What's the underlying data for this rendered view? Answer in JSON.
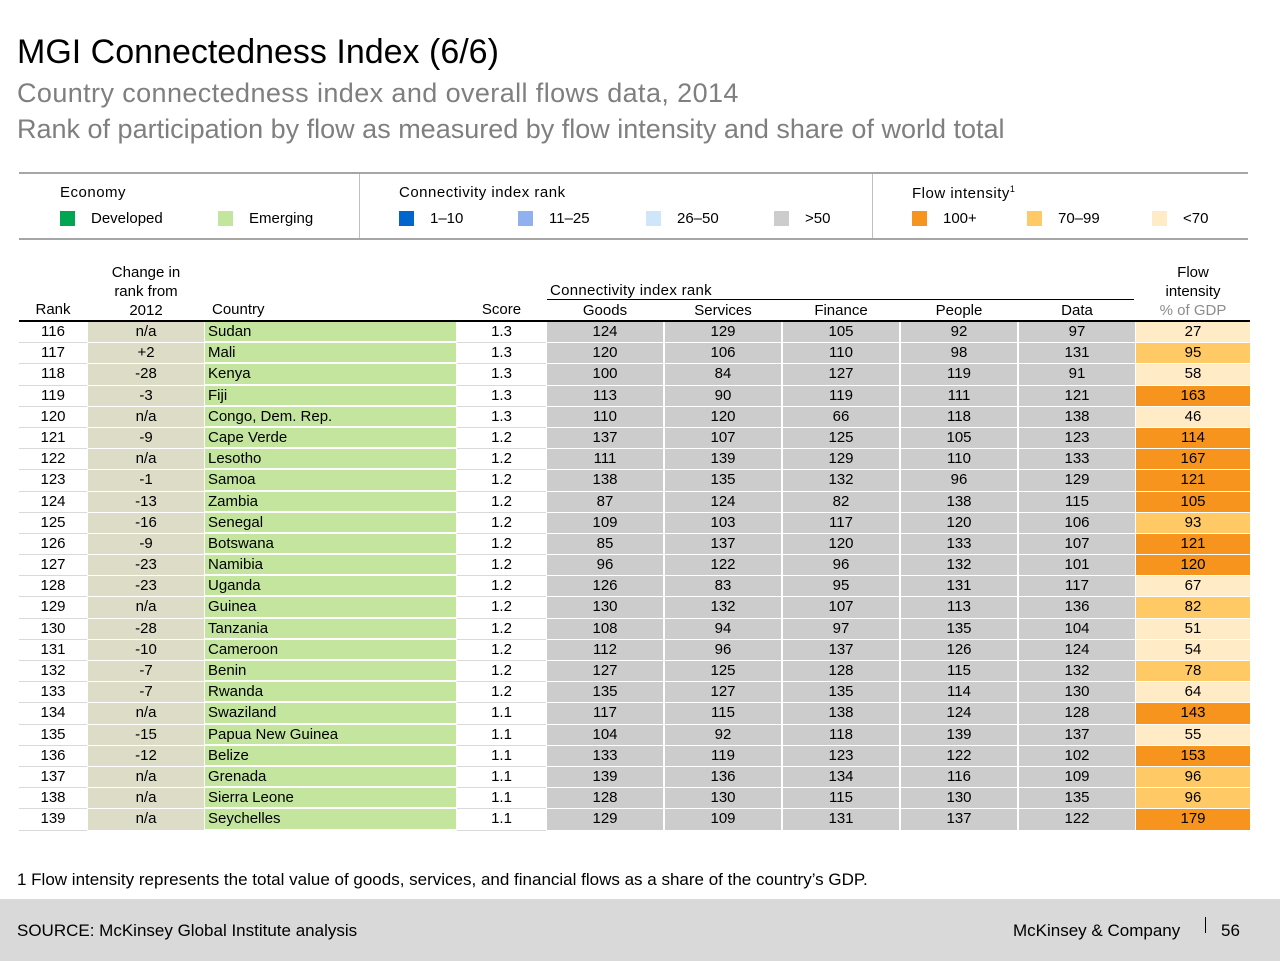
{
  "header": {
    "title": "MGI Connectedness Index (6/6)",
    "subtitle1": "Country connectedness index and overall flows data, 2014",
    "subtitle2": "Rank of participation by flow as measured by flow intensity and share of world total"
  },
  "legend": {
    "economy": {
      "title": "Economy",
      "items": [
        {
          "label": "Developed",
          "color": "#00a651"
        },
        {
          "label": "Emerging",
          "color": "#c4e59e"
        }
      ]
    },
    "connectivity": {
      "title": "Connectivity index rank",
      "items": [
        {
          "label": "1–10",
          "color": "#0066cc"
        },
        {
          "label": "11–25",
          "color": "#8fb1f0"
        },
        {
          "label": "26–50",
          "color": "#cfe5fa"
        },
        {
          "label": ">50",
          "color": "#cccccc"
        }
      ]
    },
    "flow": {
      "title": "Flow intensity",
      "title_sup": "1",
      "items": [
        {
          "label": "100+",
          "color": "#f7941d"
        },
        {
          "label": "70–99",
          "color": "#ffc966"
        },
        {
          "label": "<70",
          "color": "#ffebc6"
        }
      ]
    }
  },
  "table": {
    "headers": {
      "rank": "Rank",
      "change_line1": "Change in",
      "change_line2": "rank from",
      "change_line3": "2012",
      "country": "Country",
      "score": "Score",
      "group": "Connectivity index rank",
      "goods": "Goods",
      "services": "Services",
      "finance": "Finance",
      "people": "People",
      "data": "Data",
      "flow_line1": "Flow",
      "flow_line2": "intensity",
      "flow_line3": "% of GDP"
    },
    "rows": [
      {
        "rank": "116",
        "change": "n/a",
        "country": "Sudan",
        "score": "1.3",
        "goods": "124",
        "services": "129",
        "finance": "105",
        "people": "92",
        "data": "97",
        "flow": "27"
      },
      {
        "rank": "117",
        "change": "+2",
        "country": "Mali",
        "score": "1.3",
        "goods": "120",
        "services": "106",
        "finance": "110",
        "people": "98",
        "data": "131",
        "flow": "95"
      },
      {
        "rank": "118",
        "change": "-28",
        "country": "Kenya",
        "score": "1.3",
        "goods": "100",
        "services": "84",
        "finance": "127",
        "people": "119",
        "data": "91",
        "flow": "58"
      },
      {
        "rank": "119",
        "change": "-3",
        "country": "Fiji",
        "score": "1.3",
        "goods": "113",
        "services": "90",
        "finance": "119",
        "people": "111",
        "data": "121",
        "flow": "163"
      },
      {
        "rank": "120",
        "change": "n/a",
        "country": "Congo, Dem. Rep.",
        "score": "1.3",
        "goods": "110",
        "services": "120",
        "finance": "66",
        "people": "118",
        "data": "138",
        "flow": "46"
      },
      {
        "rank": "121",
        "change": "-9",
        "country": "Cape Verde",
        "score": "1.2",
        "goods": "137",
        "services": "107",
        "finance": "125",
        "people": "105",
        "data": "123",
        "flow": "114"
      },
      {
        "rank": "122",
        "change": "n/a",
        "country": "Lesotho",
        "score": "1.2",
        "goods": "111",
        "services": "139",
        "finance": "129",
        "people": "110",
        "data": "133",
        "flow": "167"
      },
      {
        "rank": "123",
        "change": "-1",
        "country": "Samoa",
        "score": "1.2",
        "goods": "138",
        "services": "135",
        "finance": "132",
        "people": "96",
        "data": "129",
        "flow": "121"
      },
      {
        "rank": "124",
        "change": "-13",
        "country": "Zambia",
        "score": "1.2",
        "goods": "87",
        "services": "124",
        "finance": "82",
        "people": "138",
        "data": "115",
        "flow": "105"
      },
      {
        "rank": "125",
        "change": "-16",
        "country": "Senegal",
        "score": "1.2",
        "goods": "109",
        "services": "103",
        "finance": "117",
        "people": "120",
        "data": "106",
        "flow": "93"
      },
      {
        "rank": "126",
        "change": "-9",
        "country": "Botswana",
        "score": "1.2",
        "goods": "85",
        "services": "137",
        "finance": "120",
        "people": "133",
        "data": "107",
        "flow": "121"
      },
      {
        "rank": "127",
        "change": "-23",
        "country": "Namibia",
        "score": "1.2",
        "goods": "96",
        "services": "122",
        "finance": "96",
        "people": "132",
        "data": "101",
        "flow": "120"
      },
      {
        "rank": "128",
        "change": "-23",
        "country": "Uganda",
        "score": "1.2",
        "goods": "126",
        "services": "83",
        "finance": "95",
        "people": "131",
        "data": "117",
        "flow": "67"
      },
      {
        "rank": "129",
        "change": "n/a",
        "country": "Guinea",
        "score": "1.2",
        "goods": "130",
        "services": "132",
        "finance": "107",
        "people": "113",
        "data": "136",
        "flow": "82"
      },
      {
        "rank": "130",
        "change": "-28",
        "country": "Tanzania",
        "score": "1.2",
        "goods": "108",
        "services": "94",
        "finance": "97",
        "people": "135",
        "data": "104",
        "flow": "51"
      },
      {
        "rank": "131",
        "change": "-10",
        "country": "Cameroon",
        "score": "1.2",
        "goods": "112",
        "services": "96",
        "finance": "137",
        "people": "126",
        "data": "124",
        "flow": "54"
      },
      {
        "rank": "132",
        "change": "-7",
        "country": "Benin",
        "score": "1.2",
        "goods": "127",
        "services": "125",
        "finance": "128",
        "people": "115",
        "data": "132",
        "flow": "78"
      },
      {
        "rank": "133",
        "change": "-7",
        "country": "Rwanda",
        "score": "1.2",
        "goods": "135",
        "services": "127",
        "finance": "135",
        "people": "114",
        "data": "130",
        "flow": "64"
      },
      {
        "rank": "134",
        "change": "n/a",
        "country": "Swaziland",
        "score": "1.1",
        "goods": "117",
        "services": "115",
        "finance": "138",
        "people": "124",
        "data": "128",
        "flow": "143"
      },
      {
        "rank": "135",
        "change": "-15",
        "country": "Papua New Guinea",
        "score": "1.1",
        "goods": "104",
        "services": "92",
        "finance": "118",
        "people": "139",
        "data": "137",
        "flow": "55"
      },
      {
        "rank": "136",
        "change": "-12",
        "country": "Belize",
        "score": "1.1",
        "goods": "133",
        "services": "119",
        "finance": "123",
        "people": "122",
        "data": "102",
        "flow": "153"
      },
      {
        "rank": "137",
        "change": "n/a",
        "country": "Grenada",
        "score": "1.1",
        "goods": "139",
        "services": "136",
        "finance": "134",
        "people": "116",
        "data": "109",
        "flow": "96"
      },
      {
        "rank": "138",
        "change": "n/a",
        "country": "Sierra Leone",
        "score": "1.1",
        "goods": "128",
        "services": "130",
        "finance": "115",
        "people": "130",
        "data": "135",
        "flow": "96"
      },
      {
        "rank": "139",
        "change": "n/a",
        "country": "Seychelles",
        "score": "1.1",
        "goods": "129",
        "services": "109",
        "finance": "131",
        "people": "137",
        "data": "122",
        "flow": "179"
      }
    ]
  },
  "footnote": "1 Flow intensity represents the total value of goods, services, and financial flows as a share of the country’s GDP.",
  "footer": {
    "source": "SOURCE: McKinsey Global Institute analysis",
    "brand": "McKinsey & Company",
    "page": "56"
  }
}
